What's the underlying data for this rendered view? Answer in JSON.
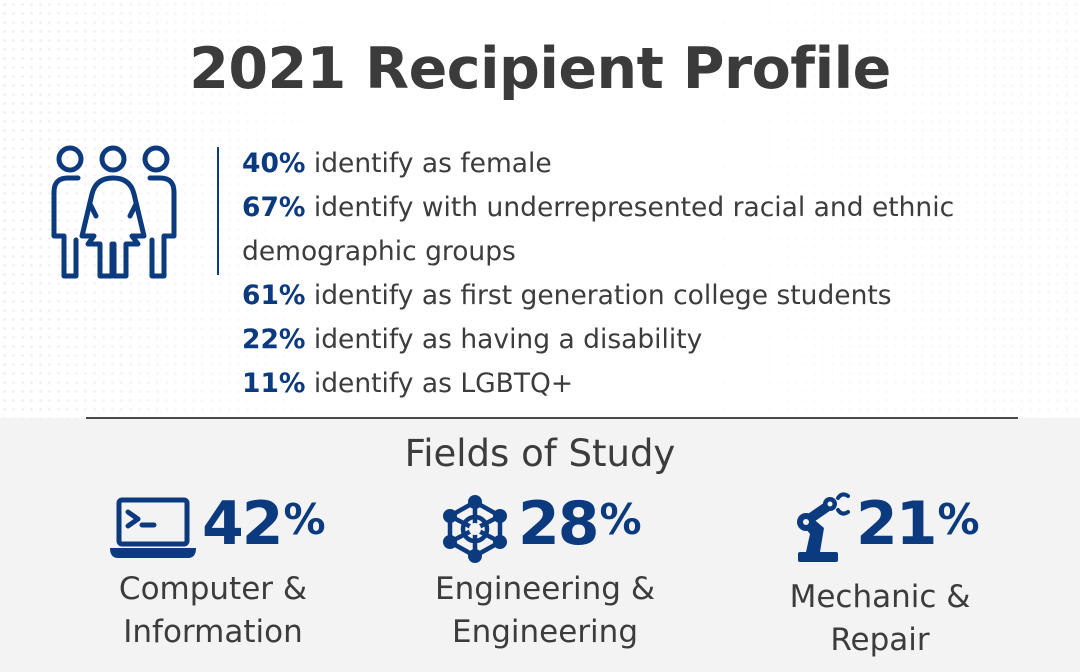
{
  "title": "2021 Recipient Profile",
  "colors": {
    "accent": "#0b3a7e",
    "text": "#3c3c3c",
    "panel": "#f3f3f3"
  },
  "profile_icon": "people-group-icon",
  "stats": [
    {
      "pct": "40%",
      "text": "identify as female"
    },
    {
      "pct": "67%",
      "text": "identify with underrepresented racial and ethnic demographic groups"
    },
    {
      "pct": "61%",
      "text": "identify as first generation college students"
    },
    {
      "pct": "22%",
      "text": "identify as having a disability"
    },
    {
      "pct": "11%",
      "text": "identify as LGBTQ+"
    }
  ],
  "fields_title": "Fields of Study",
  "fields": [
    {
      "icon": "laptop-terminal-icon",
      "value": "42",
      "unit": "%",
      "label_line1": "Computer &",
      "label_line2": "Information"
    },
    {
      "icon": "network-hub-icon",
      "value": "28",
      "unit": "%",
      "label_line1": "Engineering &",
      "label_line2": "Engineering"
    },
    {
      "icon": "robotic-arm-icon",
      "value": "21",
      "unit": "%",
      "label_line1": "Mechanic &",
      "label_line2": "Repair"
    }
  ]
}
